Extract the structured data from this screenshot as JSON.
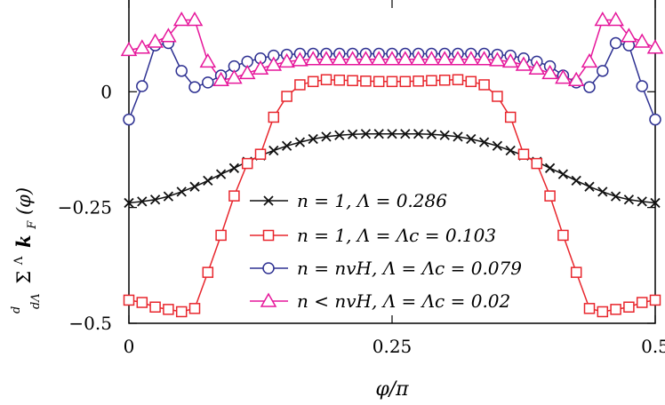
{
  "chart_data": {
    "type": "line",
    "xlabel": "φ/π",
    "ylabel_parts": {
      "prefix_num": "d",
      "prefix_den": "dΛ",
      "sigma": "Σ",
      "sup": "Λ",
      "k": "k",
      "sub": "F",
      "arg": "(φ)"
    },
    "xlim": [
      0,
      0.5
    ],
    "ylim": [
      -0.5,
      0.2
    ],
    "x_ticks": [
      {
        "value": 0,
        "label": "0"
      },
      {
        "value": 0.25,
        "label": "0.25"
      },
      {
        "value": 0.5,
        "label": "0.5"
      }
    ],
    "y_ticks": [
      {
        "value": 0,
        "label": "0"
      },
      {
        "value": -0.25,
        "label": "−0.25"
      },
      {
        "value": -0.5,
        "label": "−0.5"
      }
    ],
    "grid": false,
    "legend_position": "center",
    "series": [
      {
        "name": "n = 1, Λ = 0.286",
        "color": "#111111",
        "marker": "x",
        "x": [
          0,
          0.0125,
          0.025,
          0.0375,
          0.05,
          0.0625,
          0.075,
          0.0875,
          0.1,
          0.1125,
          0.125,
          0.1375,
          0.15,
          0.1625,
          0.175,
          0.1875,
          0.2,
          0.2125,
          0.225,
          0.2375,
          0.25,
          0.2625,
          0.275,
          0.2875,
          0.3,
          0.3125,
          0.325,
          0.3375,
          0.35,
          0.3625,
          0.375,
          0.3875,
          0.4,
          0.4125,
          0.425,
          0.4375,
          0.45,
          0.4625,
          0.475,
          0.4875,
          0.5
        ],
        "y": [
          -0.24,
          -0.237,
          -0.233,
          -0.226,
          -0.216,
          -0.205,
          -0.192,
          -0.178,
          -0.165,
          -0.151,
          -0.138,
          -0.127,
          -0.117,
          -0.109,
          -0.102,
          -0.097,
          -0.094,
          -0.092,
          -0.091,
          -0.091,
          -0.091,
          -0.091,
          -0.091,
          -0.092,
          -0.094,
          -0.097,
          -0.102,
          -0.109,
          -0.117,
          -0.127,
          -0.138,
          -0.151,
          -0.165,
          -0.178,
          -0.192,
          -0.205,
          -0.216,
          -0.226,
          -0.233,
          -0.237,
          -0.24
        ]
      },
      {
        "name": "n = 1, Λ = Λc = 0.103",
        "color": "#e8262d",
        "marker": "square",
        "x": [
          0,
          0.0125,
          0.025,
          0.0375,
          0.05,
          0.0625,
          0.075,
          0.0875,
          0.1,
          0.1125,
          0.125,
          0.1375,
          0.15,
          0.1625,
          0.175,
          0.1875,
          0.2,
          0.2125,
          0.225,
          0.2375,
          0.25,
          0.2625,
          0.275,
          0.2875,
          0.3,
          0.3125,
          0.325,
          0.3375,
          0.35,
          0.3625,
          0.375,
          0.3875,
          0.4,
          0.4125,
          0.425,
          0.4375,
          0.45,
          0.4625,
          0.475,
          0.4875,
          0.5
        ],
        "y": [
          -0.45,
          -0.455,
          -0.465,
          -0.47,
          -0.475,
          -0.468,
          -0.39,
          -0.31,
          -0.225,
          -0.155,
          -0.135,
          -0.055,
          -0.01,
          0.015,
          0.022,
          0.026,
          0.025,
          0.024,
          0.023,
          0.022,
          0.022,
          0.022,
          0.023,
          0.024,
          0.025,
          0.026,
          0.022,
          0.015,
          -0.01,
          -0.055,
          -0.135,
          -0.155,
          -0.225,
          -0.31,
          -0.39,
          -0.468,
          -0.475,
          -0.47,
          -0.465,
          -0.455,
          -0.45
        ]
      },
      {
        "name": "n = nvH, Λ = Λc = 0.079",
        "color": "#2e3192",
        "marker": "circle",
        "x": [
          0,
          0.0125,
          0.025,
          0.0375,
          0.05,
          0.0625,
          0.075,
          0.0875,
          0.1,
          0.1125,
          0.125,
          0.1375,
          0.15,
          0.1625,
          0.175,
          0.1875,
          0.2,
          0.2125,
          0.225,
          0.2375,
          0.25,
          0.2625,
          0.275,
          0.2875,
          0.3,
          0.3125,
          0.325,
          0.3375,
          0.35,
          0.3625,
          0.375,
          0.3875,
          0.4,
          0.4125,
          0.425,
          0.4375,
          0.45,
          0.4625,
          0.475,
          0.4875,
          0.5
        ],
        "y": [
          -0.06,
          0.012,
          0.1,
          0.105,
          0.045,
          0.01,
          0.02,
          0.035,
          0.055,
          0.065,
          0.072,
          0.078,
          0.08,
          0.082,
          0.082,
          0.082,
          0.082,
          0.082,
          0.082,
          0.082,
          0.082,
          0.082,
          0.082,
          0.082,
          0.082,
          0.082,
          0.082,
          0.082,
          0.08,
          0.078,
          0.072,
          0.065,
          0.055,
          0.035,
          0.02,
          0.01,
          0.045,
          0.105,
          0.1,
          0.012,
          -0.06
        ]
      },
      {
        "name": "n < nvH, Λ = Λc = 0.02",
        "color": "#e6179b",
        "marker": "triangle",
        "x": [
          0,
          0.0125,
          0.025,
          0.0375,
          0.05,
          0.0625,
          0.075,
          0.0875,
          0.1,
          0.1125,
          0.125,
          0.1375,
          0.15,
          0.1625,
          0.175,
          0.1875,
          0.2,
          0.2125,
          0.225,
          0.2375,
          0.25,
          0.2625,
          0.275,
          0.2875,
          0.3,
          0.3125,
          0.325,
          0.3375,
          0.35,
          0.3625,
          0.375,
          0.3875,
          0.4,
          0.4125,
          0.425,
          0.4375,
          0.45,
          0.4625,
          0.475,
          0.4875,
          0.5
        ],
        "y": [
          0.09,
          0.095,
          0.108,
          0.12,
          0.155,
          0.155,
          0.065,
          0.025,
          0.03,
          0.04,
          0.05,
          0.058,
          0.065,
          0.068,
          0.07,
          0.07,
          0.07,
          0.07,
          0.07,
          0.07,
          0.07,
          0.07,
          0.07,
          0.07,
          0.07,
          0.07,
          0.07,
          0.07,
          0.068,
          0.065,
          0.058,
          0.05,
          0.04,
          0.03,
          0.025,
          0.065,
          0.155,
          0.155,
          0.12,
          0.108,
          0.095
        ]
      }
    ]
  }
}
